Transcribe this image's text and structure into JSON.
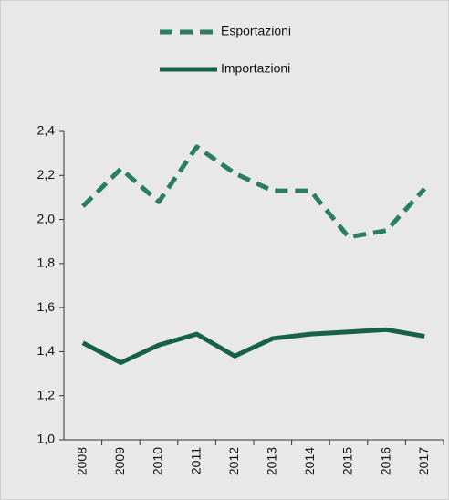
{
  "chart_data": {
    "type": "line",
    "categories": [
      "2008",
      "2009",
      "2010",
      "2011",
      "2012",
      "2013",
      "2014",
      "2015",
      "2016",
      "2017"
    ],
    "series": [
      {
        "name": "Esportazioni",
        "color": "#2a7d5f",
        "dashed": true,
        "values": [
          2.06,
          2.23,
          2.08,
          2.33,
          2.21,
          2.13,
          2.13,
          1.92,
          1.95,
          2.14
        ]
      },
      {
        "name": "Importazioni",
        "color": "#17614a",
        "dashed": false,
        "values": [
          1.44,
          1.35,
          1.43,
          1.48,
          1.38,
          1.46,
          1.48,
          1.49,
          1.5,
          1.47
        ]
      }
    ],
    "ylim": [
      1.0,
      2.4
    ],
    "yticks": [
      {
        "value": 1.0,
        "label": "1,0"
      },
      {
        "value": 1.2,
        "label": "1,2"
      },
      {
        "value": 1.4,
        "label": "1,4"
      },
      {
        "value": 1.6,
        "label": "1,6"
      },
      {
        "value": 1.8,
        "label": "1,8"
      },
      {
        "value": 2.0,
        "label": "2,0"
      },
      {
        "value": 2.2,
        "label": "2,2"
      },
      {
        "value": 2.4,
        "label": "2,4"
      }
    ],
    "legend": "top",
    "grid": false
  }
}
